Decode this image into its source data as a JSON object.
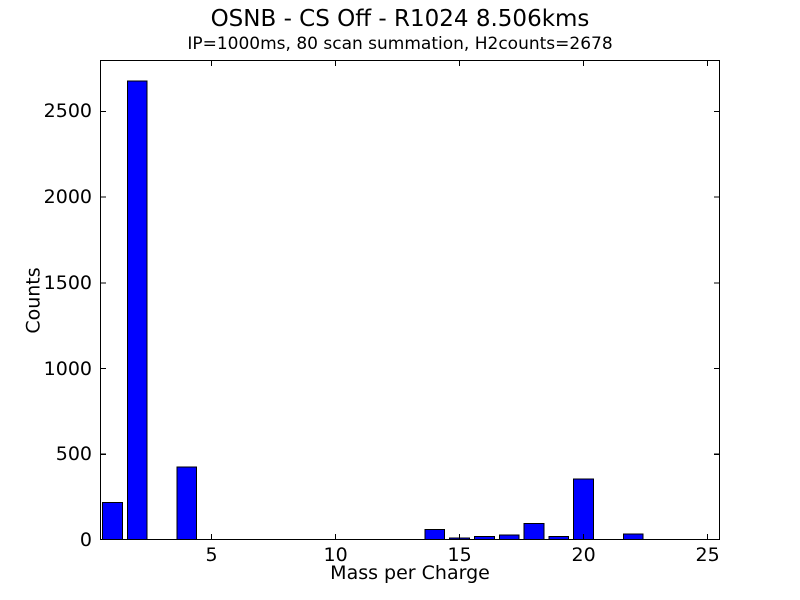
{
  "chart_data": {
    "type": "bar",
    "title": "OSNB - CS Off - R1024 8.506kms",
    "subtitle": "IP=1000ms, 80 scan summation, H2counts=2678",
    "xlabel": "Mass per Charge",
    "ylabel": "Counts",
    "x": [
      1,
      2,
      3,
      4,
      5,
      6,
      7,
      8,
      9,
      10,
      11,
      12,
      13,
      14,
      15,
      16,
      17,
      18,
      19,
      20,
      21,
      22,
      23,
      24,
      25
    ],
    "values": [
      220,
      2678,
      0,
      425,
      0,
      0,
      0,
      0,
      0,
      0,
      0,
      0,
      0,
      60,
      12,
      20,
      28,
      95,
      20,
      355,
      0,
      35,
      0,
      0,
      0
    ],
    "xlim": [
      0.5,
      25.5
    ],
    "ylim": [
      0,
      2800
    ],
    "xticks": [
      5,
      10,
      15,
      20,
      25
    ],
    "yticks": [
      0,
      500,
      1000,
      1500,
      2000,
      2500
    ],
    "bar_width": 0.8,
    "bar_color": "#0000ff",
    "bar_edge_color": "#000000",
    "spine_color": "#000000",
    "grid": false,
    "legend": "none",
    "tick_direction": "in"
  }
}
